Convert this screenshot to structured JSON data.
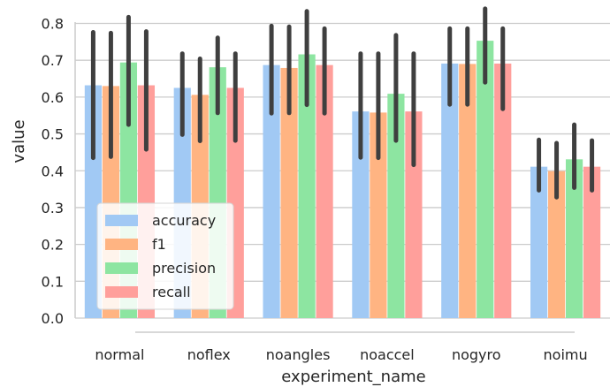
{
  "chart_data": {
    "type": "bar",
    "title": "",
    "xlabel": "experiment_name",
    "ylabel": "value",
    "ylim": [
      0,
      0.83
    ],
    "yticks": [
      "0.0",
      "0.1",
      "0.2",
      "0.3",
      "0.4",
      "0.5",
      "0.6",
      "0.7",
      "0.8"
    ],
    "grid": "y",
    "legend_position": "lower-left",
    "categories": [
      "normal",
      "noflex",
      "noangles",
      "noaccel",
      "nogyro",
      "noimu"
    ],
    "series": [
      {
        "name": "accuracy",
        "color": "#a1c9f4",
        "values": [
          0.632,
          0.625,
          0.687,
          0.561,
          0.691,
          0.411
        ],
        "ci_low": [
          0.435,
          0.498,
          0.556,
          0.436,
          0.58,
          0.347
        ],
        "ci_high": [
          0.776,
          0.718,
          0.793,
          0.718,
          0.786,
          0.484
        ]
      },
      {
        "name": "f1",
        "color": "#ffb482",
        "values": [
          0.63,
          0.606,
          0.679,
          0.558,
          0.69,
          0.399
        ],
        "ci_low": [
          0.438,
          0.481,
          0.557,
          0.435,
          0.58,
          0.328
        ],
        "ci_high": [
          0.774,
          0.704,
          0.791,
          0.718,
          0.786,
          0.475
        ]
      },
      {
        "name": "precision",
        "color": "#8de5a1",
        "values": [
          0.694,
          0.681,
          0.716,
          0.609,
          0.753,
          0.431
        ],
        "ci_low": [
          0.525,
          0.557,
          0.579,
          0.482,
          0.64,
          0.354
        ],
        "ci_high": [
          0.817,
          0.761,
          0.833,
          0.768,
          0.84,
          0.525
        ]
      },
      {
        "name": "recall",
        "color": "#ff9f9b",
        "values": [
          0.632,
          0.625,
          0.687,
          0.561,
          0.691,
          0.411
        ],
        "ci_low": [
          0.458,
          0.482,
          0.556,
          0.416,
          0.568,
          0.347
        ],
        "ci_high": [
          0.778,
          0.718,
          0.786,
          0.718,
          0.786,
          0.482
        ]
      }
    ]
  }
}
